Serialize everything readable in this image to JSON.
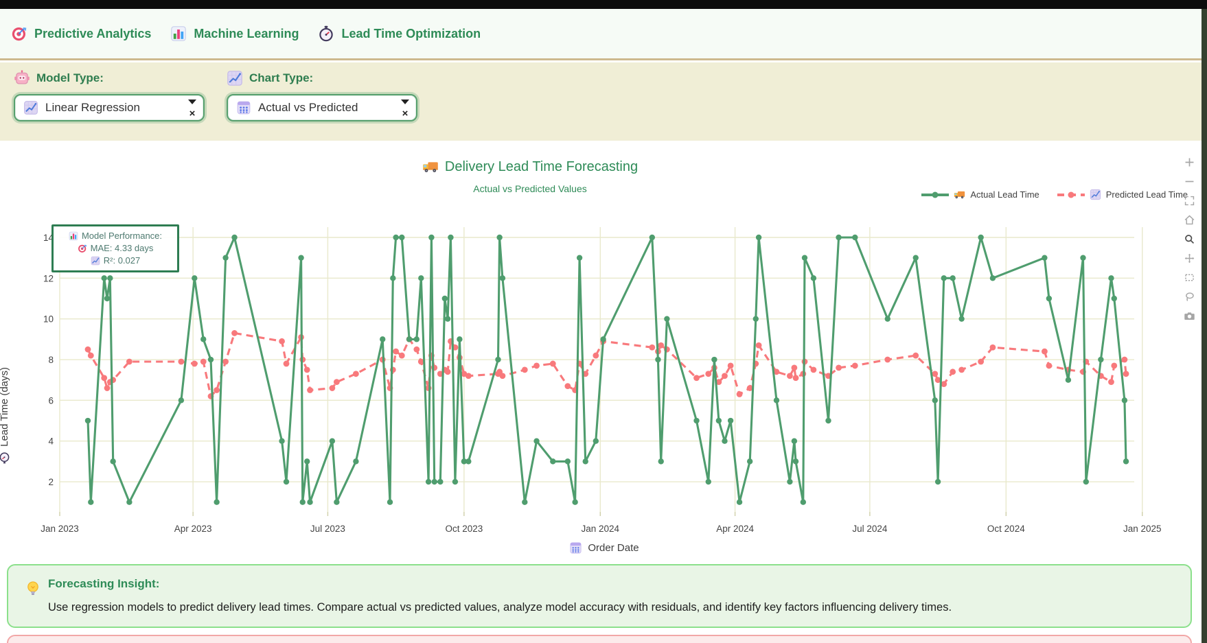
{
  "topnav": {
    "items": [
      {
        "icon": "target-icon",
        "label": "Predictive Analytics"
      },
      {
        "icon": "bar-chart-icon",
        "label": "Machine Learning"
      },
      {
        "icon": "stopwatch-icon",
        "label": "Lead Time Optimization"
      }
    ]
  },
  "filters": {
    "clear_symbol": "×",
    "model_type": {
      "icon": "robot-icon",
      "label": "Model Type:",
      "value": "Linear Regression",
      "value_icon": "chart-up-icon"
    },
    "chart_type": {
      "icon": "chart-up-icon",
      "label": "Chart Type:",
      "value": "Actual vs Predicted",
      "value_icon": "calendar-grid-icon"
    }
  },
  "chart": {
    "title": "Delivery Lead Time Forecasting",
    "title_icon": "truck-icon",
    "subtitle": "Actual vs Predicted Values",
    "legend": [
      {
        "icon": "truck-icon",
        "label": "Actual Lead Time",
        "series": "actual"
      },
      {
        "icon": "chart-up-icon",
        "label": "Predicted Lead Time",
        "series": "predicted"
      }
    ],
    "annotation": {
      "lines": [
        {
          "icon": "bar-chart-icon",
          "text": "Model Performance:"
        },
        {
          "icon": "target-icon",
          "text": "MAE: 4.33 days"
        },
        {
          "icon": "chart-up-icon",
          "text": "R²: 0.027"
        }
      ],
      "metrics": {
        "mae_days": 4.33,
        "r_squared": 0.027
      }
    },
    "colors": {
      "actual": "#4f9d6e",
      "predicted": "#f8797c",
      "grid": "#e9e9cc",
      "title": "#2e8b57",
      "tick": "#444444"
    }
  },
  "chart_data": {
    "type": "line",
    "title": "Delivery Lead Time Forecasting",
    "subtitle": "Actual vs Predicted Values",
    "xlabel": "Order Date",
    "xlabel_icon": "calendar-grid-icon",
    "ylabel": "Lead Time (days)",
    "ylabel_icon": "stopwatch-icon",
    "ylim": [
      0.5,
      14.5
    ],
    "yticks": [
      2,
      4,
      6,
      8,
      10,
      12,
      14
    ],
    "xticks": [
      "Jan 2023",
      "Apr 2023",
      "Jul 2023",
      "Oct 2023",
      "Jan 2024",
      "Apr 2024",
      "Jul 2024",
      "Oct 2024",
      "Jan 2025"
    ],
    "xtick_dates": [
      "2023-01-01",
      "2023-04-01",
      "2023-07-01",
      "2023-10-01",
      "2024-01-01",
      "2024-04-01",
      "2024-07-01",
      "2024-10-01",
      "2025-01-01"
    ],
    "legend_position": "top-right",
    "grid": true,
    "series": [
      {
        "name": "Actual Lead Time",
        "style": "solid",
        "color": "#4f9d6e"
      },
      {
        "name": "Predicted Lead Time",
        "style": "dashed",
        "color": "#f8797c"
      }
    ],
    "points": [
      [
        "2023-01-20",
        5,
        8.5
      ],
      [
        "2023-01-22",
        1,
        8.2
      ],
      [
        "2023-01-31",
        12,
        7.1
      ],
      [
        "2023-02-02",
        11,
        6.6
      ],
      [
        "2023-02-04",
        12,
        6.9
      ],
      [
        "2023-02-06",
        3,
        7.0
      ],
      [
        "2023-02-17",
        1,
        7.9
      ],
      [
        "2023-03-24",
        6,
        7.9
      ],
      [
        "2023-04-02",
        12,
        7.8
      ],
      [
        "2023-04-08",
        9,
        7.9
      ],
      [
        "2023-04-13",
        8,
        6.2
      ],
      [
        "2023-04-17",
        1,
        6.5
      ],
      [
        "2023-04-23",
        13,
        7.9
      ],
      [
        "2023-04-29",
        14,
        9.3
      ],
      [
        "2023-05-31",
        4,
        8.9
      ],
      [
        "2023-06-03",
        2,
        7.8
      ],
      [
        "2023-06-13",
        13,
        9.1
      ],
      [
        "2023-06-14",
        1,
        8.0
      ],
      [
        "2023-06-17",
        3,
        7.5
      ],
      [
        "2023-06-19",
        1,
        6.5
      ],
      [
        "2023-07-04",
        4,
        6.6
      ],
      [
        "2023-07-07",
        1,
        6.9
      ],
      [
        "2023-07-20",
        3,
        7.3
      ],
      [
        "2023-08-07",
        9,
        8.0
      ],
      [
        "2023-08-12",
        1,
        6.6
      ],
      [
        "2023-08-14",
        12,
        7.5
      ],
      [
        "2023-08-16",
        14,
        8.4
      ],
      [
        "2023-08-20",
        14,
        8.2
      ],
      [
        "2023-08-25",
        9,
        9.0
      ],
      [
        "2023-08-30",
        9,
        8.5
      ],
      [
        "2023-09-02",
        12,
        7.9
      ],
      [
        "2023-09-07",
        2,
        6.6
      ],
      [
        "2023-09-09",
        14,
        8.2
      ],
      [
        "2023-09-11",
        2,
        7.6
      ],
      [
        "2023-09-15",
        2,
        7.3
      ],
      [
        "2023-09-18",
        11,
        7.5
      ],
      [
        "2023-09-20",
        10,
        7.4
      ],
      [
        "2023-09-22",
        14,
        8.9
      ],
      [
        "2023-09-25",
        2,
        8.6
      ],
      [
        "2023-09-28",
        9,
        8.1
      ],
      [
        "2023-10-01",
        3,
        7.3
      ],
      [
        "2023-10-04",
        3,
        7.2
      ],
      [
        "2023-10-24",
        8,
        7.3
      ],
      [
        "2023-10-25",
        14,
        7.4
      ],
      [
        "2023-10-27",
        12,
        7.2
      ],
      [
        "2023-11-11",
        1,
        7.5
      ],
      [
        "2023-11-19",
        4,
        7.7
      ],
      [
        "2023-11-30",
        3,
        7.8
      ],
      [
        "2023-12-10",
        3,
        6.7
      ],
      [
        "2023-12-15",
        1,
        6.5
      ],
      [
        "2023-12-18",
        13,
        7.8
      ],
      [
        "2023-12-22",
        3,
        7.3
      ],
      [
        "2023-12-29",
        4,
        8.2
      ],
      [
        "2024-01-03",
        9,
        8.9
      ],
      [
        "2024-02-05",
        14,
        8.6
      ],
      [
        "2024-02-09",
        8,
        8.4
      ],
      [
        "2024-02-11",
        3,
        8.7
      ],
      [
        "2024-02-15",
        10,
        8.5
      ],
      [
        "2024-03-06",
        5,
        7.1
      ],
      [
        "2024-03-14",
        2,
        7.3
      ],
      [
        "2024-03-18",
        8,
        7.6
      ],
      [
        "2024-03-21",
        5,
        6.9
      ],
      [
        "2024-03-25",
        4,
        7.2
      ],
      [
        "2024-03-29",
        5,
        7.7
      ],
      [
        "2024-04-04",
        1,
        6.3
      ],
      [
        "2024-04-11",
        3,
        6.6
      ],
      [
        "2024-04-15",
        10,
        7.8
      ],
      [
        "2024-04-17",
        14,
        8.7
      ],
      [
        "2024-04-29",
        6,
        7.4
      ],
      [
        "2024-05-08",
        2,
        7.2
      ],
      [
        "2024-05-11",
        4,
        7.6
      ],
      [
        "2024-05-12",
        3,
        7.1
      ],
      [
        "2024-05-17",
        1,
        7.3
      ],
      [
        "2024-05-18",
        13,
        7.9
      ],
      [
        "2024-05-24",
        12,
        7.5
      ],
      [
        "2024-06-03",
        5,
        7.2
      ],
      [
        "2024-06-10",
        14,
        7.6
      ],
      [
        "2024-06-21",
        14,
        7.7
      ],
      [
        "2024-07-13",
        10,
        8.0
      ],
      [
        "2024-08-01",
        13,
        8.2
      ],
      [
        "2024-08-14",
        6,
        7.3
      ],
      [
        "2024-08-16",
        2,
        7.0
      ],
      [
        "2024-08-20",
        12,
        6.8
      ],
      [
        "2024-08-26",
        12,
        7.4
      ],
      [
        "2024-09-01",
        10,
        7.5
      ],
      [
        "2024-09-14",
        14,
        7.9
      ],
      [
        "2024-09-22",
        12,
        8.6
      ],
      [
        "2024-10-27",
        13,
        8.4
      ],
      [
        "2024-10-30",
        11,
        7.7
      ],
      [
        "2024-11-12",
        7,
        7.5
      ],
      [
        "2024-11-22",
        13,
        7.4
      ],
      [
        "2024-11-24",
        2,
        7.9
      ],
      [
        "2024-12-04",
        8,
        7.2
      ],
      [
        "2024-12-11",
        12,
        6.9
      ],
      [
        "2024-12-13",
        11,
        7.7
      ],
      [
        "2024-12-20",
        6,
        8.0
      ],
      [
        "2024-12-21",
        3,
        7.3
      ]
    ]
  },
  "modebar": {
    "icons": [
      "zoom-in-icon",
      "zoom-out-icon",
      "autoscale-icon",
      "home-icon",
      "zoom-icon",
      "pan-icon",
      "box-select-icon",
      "lasso-icon",
      "camera-icon"
    ],
    "active": "zoom-icon"
  },
  "insight": {
    "icon": "bulb-icon",
    "title": "Forecasting Insight:",
    "body": "Use regression models to predict delivery lead times. Compare actual vs predicted values, analyze model accuracy with residuals, and identify key factors influencing delivery times."
  }
}
